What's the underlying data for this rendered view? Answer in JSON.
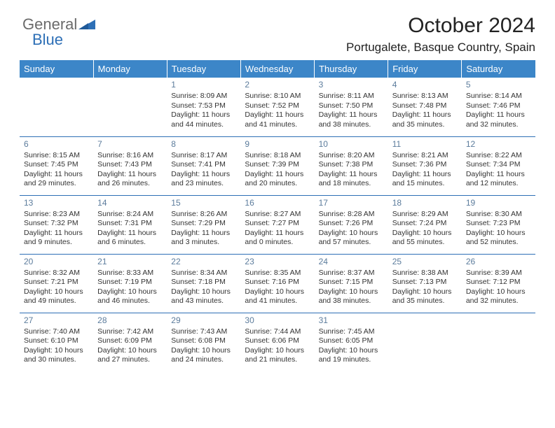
{
  "logo": {
    "word1": "General",
    "word2": "Blue",
    "color_gray": "#6b6b6b",
    "color_blue": "#2d6fb6"
  },
  "header": {
    "month": "October 2024",
    "location": "Portugalete, Basque Country, Spain"
  },
  "styling": {
    "header_bg": "#3c86c8",
    "header_fg": "#ffffff",
    "divider_color": "#2d6fb6",
    "daynum_color": "#5c7c9c",
    "body_font_size": 10.5,
    "daynum_font_size": 12
  },
  "days_of_week": [
    "Sunday",
    "Monday",
    "Tuesday",
    "Wednesday",
    "Thursday",
    "Friday",
    "Saturday"
  ],
  "weeks": [
    [
      null,
      null,
      {
        "n": "1",
        "sr": "8:09 AM",
        "ss": "7:53 PM",
        "dl": "11 hours and 44 minutes."
      },
      {
        "n": "2",
        "sr": "8:10 AM",
        "ss": "7:52 PM",
        "dl": "11 hours and 41 minutes."
      },
      {
        "n": "3",
        "sr": "8:11 AM",
        "ss": "7:50 PM",
        "dl": "11 hours and 38 minutes."
      },
      {
        "n": "4",
        "sr": "8:13 AM",
        "ss": "7:48 PM",
        "dl": "11 hours and 35 minutes."
      },
      {
        "n": "5",
        "sr": "8:14 AM",
        "ss": "7:46 PM",
        "dl": "11 hours and 32 minutes."
      }
    ],
    [
      {
        "n": "6",
        "sr": "8:15 AM",
        "ss": "7:45 PM",
        "dl": "11 hours and 29 minutes."
      },
      {
        "n": "7",
        "sr": "8:16 AM",
        "ss": "7:43 PM",
        "dl": "11 hours and 26 minutes."
      },
      {
        "n": "8",
        "sr": "8:17 AM",
        "ss": "7:41 PM",
        "dl": "11 hours and 23 minutes."
      },
      {
        "n": "9",
        "sr": "8:18 AM",
        "ss": "7:39 PM",
        "dl": "11 hours and 20 minutes."
      },
      {
        "n": "10",
        "sr": "8:20 AM",
        "ss": "7:38 PM",
        "dl": "11 hours and 18 minutes."
      },
      {
        "n": "11",
        "sr": "8:21 AM",
        "ss": "7:36 PM",
        "dl": "11 hours and 15 minutes."
      },
      {
        "n": "12",
        "sr": "8:22 AM",
        "ss": "7:34 PM",
        "dl": "11 hours and 12 minutes."
      }
    ],
    [
      {
        "n": "13",
        "sr": "8:23 AM",
        "ss": "7:32 PM",
        "dl": "11 hours and 9 minutes."
      },
      {
        "n": "14",
        "sr": "8:24 AM",
        "ss": "7:31 PM",
        "dl": "11 hours and 6 minutes."
      },
      {
        "n": "15",
        "sr": "8:26 AM",
        "ss": "7:29 PM",
        "dl": "11 hours and 3 minutes."
      },
      {
        "n": "16",
        "sr": "8:27 AM",
        "ss": "7:27 PM",
        "dl": "11 hours and 0 minutes."
      },
      {
        "n": "17",
        "sr": "8:28 AM",
        "ss": "7:26 PM",
        "dl": "10 hours and 57 minutes."
      },
      {
        "n": "18",
        "sr": "8:29 AM",
        "ss": "7:24 PM",
        "dl": "10 hours and 55 minutes."
      },
      {
        "n": "19",
        "sr": "8:30 AM",
        "ss": "7:23 PM",
        "dl": "10 hours and 52 minutes."
      }
    ],
    [
      {
        "n": "20",
        "sr": "8:32 AM",
        "ss": "7:21 PM",
        "dl": "10 hours and 49 minutes."
      },
      {
        "n": "21",
        "sr": "8:33 AM",
        "ss": "7:19 PM",
        "dl": "10 hours and 46 minutes."
      },
      {
        "n": "22",
        "sr": "8:34 AM",
        "ss": "7:18 PM",
        "dl": "10 hours and 43 minutes."
      },
      {
        "n": "23",
        "sr": "8:35 AM",
        "ss": "7:16 PM",
        "dl": "10 hours and 41 minutes."
      },
      {
        "n": "24",
        "sr": "8:37 AM",
        "ss": "7:15 PM",
        "dl": "10 hours and 38 minutes."
      },
      {
        "n": "25",
        "sr": "8:38 AM",
        "ss": "7:13 PM",
        "dl": "10 hours and 35 minutes."
      },
      {
        "n": "26",
        "sr": "8:39 AM",
        "ss": "7:12 PM",
        "dl": "10 hours and 32 minutes."
      }
    ],
    [
      {
        "n": "27",
        "sr": "7:40 AM",
        "ss": "6:10 PM",
        "dl": "10 hours and 30 minutes."
      },
      {
        "n": "28",
        "sr": "7:42 AM",
        "ss": "6:09 PM",
        "dl": "10 hours and 27 minutes."
      },
      {
        "n": "29",
        "sr": "7:43 AM",
        "ss": "6:08 PM",
        "dl": "10 hours and 24 minutes."
      },
      {
        "n": "30",
        "sr": "7:44 AM",
        "ss": "6:06 PM",
        "dl": "10 hours and 21 minutes."
      },
      {
        "n": "31",
        "sr": "7:45 AM",
        "ss": "6:05 PM",
        "dl": "10 hours and 19 minutes."
      },
      null,
      null
    ]
  ],
  "labels": {
    "sunrise": "Sunrise: ",
    "sunset": "Sunset: ",
    "daylight": "Daylight: "
  }
}
